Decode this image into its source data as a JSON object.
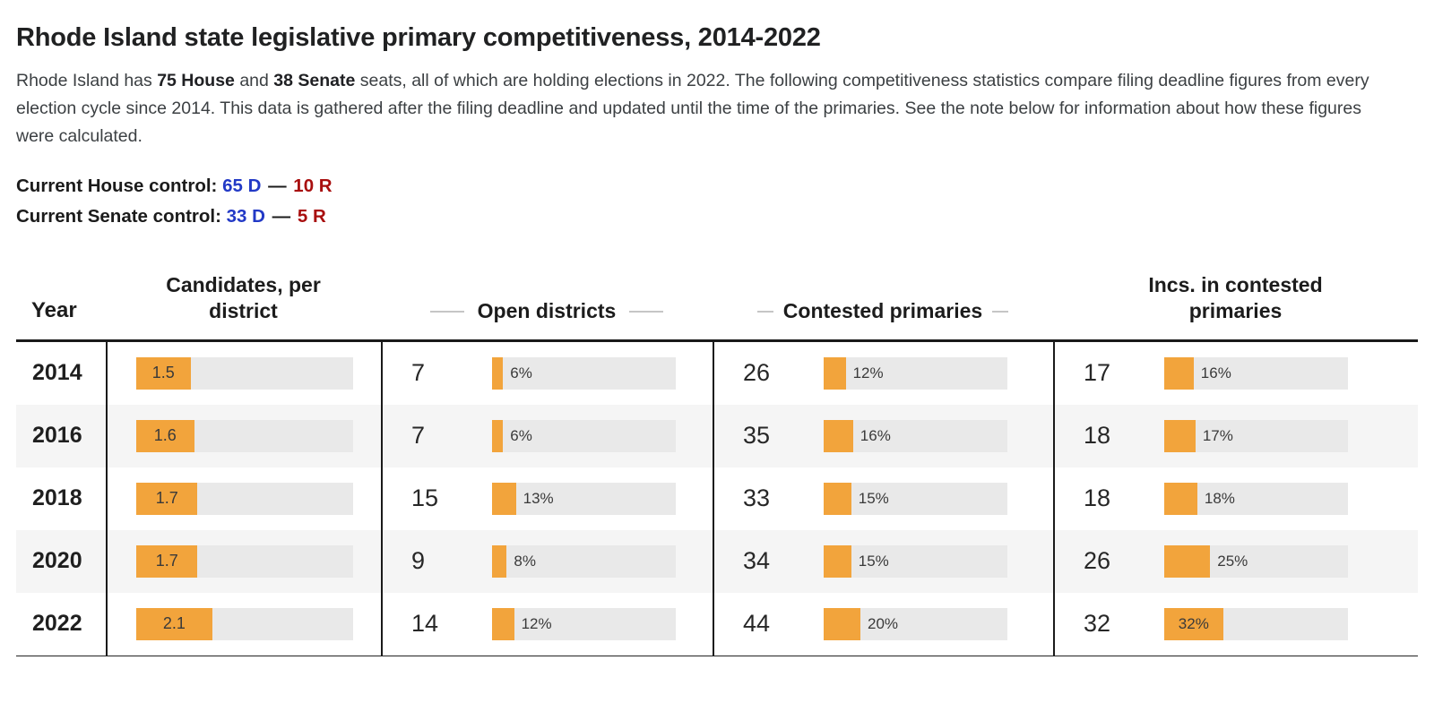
{
  "header": {
    "title": "Rhode Island state legislative primary competitiveness, 2014-2022"
  },
  "intro": {
    "pre": "Rhode Island has ",
    "house_bold": "75 House",
    "and": " and ",
    "senate_bold": "38 Senate",
    "rest": " seats, all of which are holding elections in 2022. The following competitiveness statistics compare filing deadline figures from every election cycle since 2014. This data is gathered after the filing deadline and updated until the time of the primaries. See the note below for information about how these figures were calculated."
  },
  "control": {
    "house_label": "Current House control:",
    "house_dem": "65 D",
    "separator": "—",
    "house_rep": "10 R",
    "senate_label": "Current Senate control:",
    "senate_dem": "33 D",
    "senate_rep": "5 R"
  },
  "colors": {
    "dem_blue": "#2239C6",
    "rep_red": "#A80E0E",
    "bar_orange": "#F2A43C",
    "track_gray": "#E9E9E9"
  },
  "chart_data": {
    "type": "table",
    "title": "Rhode Island state legislative primary competitiveness, 2014-2022",
    "columns": [
      "Year",
      "Candidates, per district",
      "Open districts",
      "Contested primaries",
      "Incs. in contested primaries"
    ],
    "candidates_bar_max": 6,
    "inside_label_threshold_pct": 30,
    "rows": [
      {
        "year": "2014",
        "candidates_per_district": "1.5",
        "open_count": "7",
        "open_pct": 6,
        "contested_count": "26",
        "contested_pct": 12,
        "incs_count": "17",
        "incs_pct": 16
      },
      {
        "year": "2016",
        "candidates_per_district": "1.6",
        "open_count": "7",
        "open_pct": 6,
        "contested_count": "35",
        "contested_pct": 16,
        "incs_count": "18",
        "incs_pct": 17
      },
      {
        "year": "2018",
        "candidates_per_district": "1.7",
        "open_count": "15",
        "open_pct": 13,
        "contested_count": "33",
        "contested_pct": 15,
        "incs_count": "18",
        "incs_pct": 18
      },
      {
        "year": "2020",
        "candidates_per_district": "1.7",
        "open_count": "9",
        "open_pct": 8,
        "contested_count": "34",
        "contested_pct": 15,
        "incs_count": "26",
        "incs_pct": 25
      },
      {
        "year": "2022",
        "candidates_per_district": "2.1",
        "open_count": "14",
        "open_pct": 12,
        "contested_count": "44",
        "contested_pct": 20,
        "incs_count": "32",
        "incs_pct": 32
      }
    ]
  }
}
